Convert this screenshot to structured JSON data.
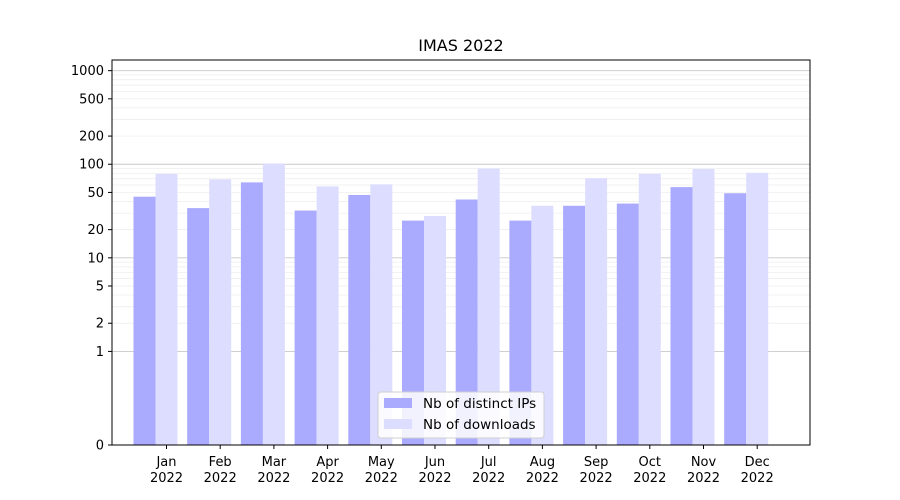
{
  "chart_data": {
    "type": "bar",
    "title": "IMAS 2022",
    "xlabel": "",
    "ylabel": "",
    "yscale": "symlog",
    "ylim": [
      0,
      1300
    ],
    "yticks": [
      0,
      1,
      2,
      5,
      10,
      20,
      50,
      100,
      200,
      500,
      1000
    ],
    "grid": true,
    "legend_position": "bottom-center",
    "categories": [
      [
        "Jan",
        "2022"
      ],
      [
        "Feb",
        "2022"
      ],
      [
        "Mar",
        "2022"
      ],
      [
        "Apr",
        "2022"
      ],
      [
        "May",
        "2022"
      ],
      [
        "Jun",
        "2022"
      ],
      [
        "Jul",
        "2022"
      ],
      [
        "Aug",
        "2022"
      ],
      [
        "Sep",
        "2022"
      ],
      [
        "Oct",
        "2022"
      ],
      [
        "Nov",
        "2022"
      ],
      [
        "Dec",
        "2022"
      ]
    ],
    "series": [
      {
        "name": "Nb of distinct IPs",
        "color": "#aaaaff",
        "values": [
          45,
          34,
          64,
          32,
          47,
          25,
          42,
          25,
          36,
          38,
          57,
          49
        ]
      },
      {
        "name": "Nb of downloads",
        "color": "#ddddff",
        "values": [
          79,
          69,
          102,
          58,
          61,
          28,
          90,
          36,
          71,
          79,
          89,
          81
        ]
      }
    ]
  }
}
